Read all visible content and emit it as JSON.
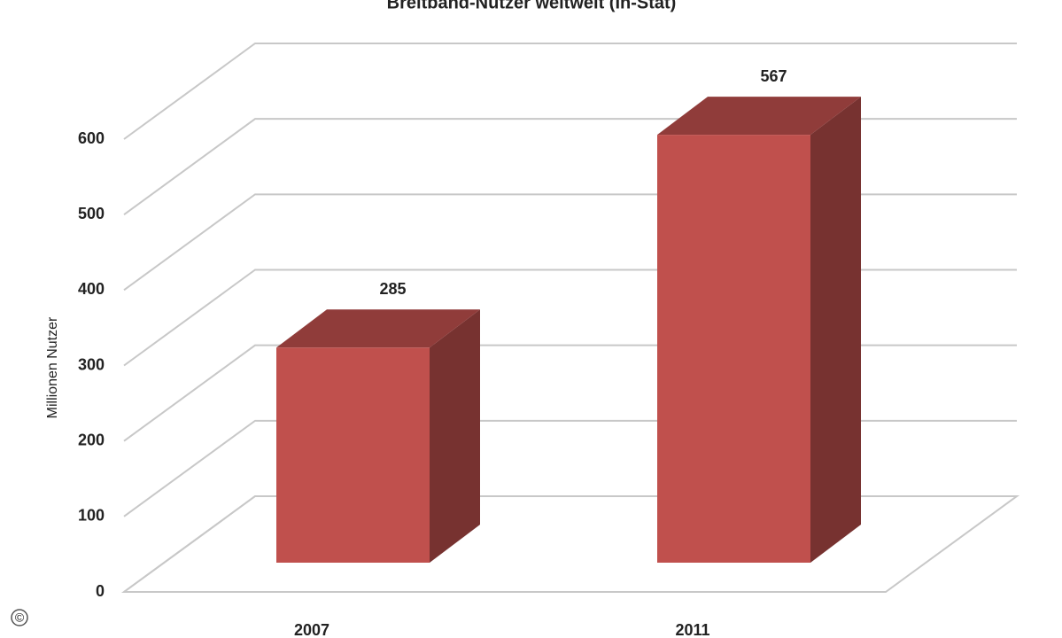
{
  "chart_data": {
    "type": "bar3d",
    "title": "Breitband-Nutzer weltweit (In-Stat)",
    "y_label": "Millionen Nutzer",
    "categories": [
      "2007",
      "2011"
    ],
    "values": [
      285,
      567
    ],
    "color": "#c0504d",
    "ylim": [
      0,
      600
    ],
    "yticks": [
      0,
      100,
      200,
      300,
      400,
      500,
      600
    ],
    "grid": true,
    "credit": "©"
  }
}
